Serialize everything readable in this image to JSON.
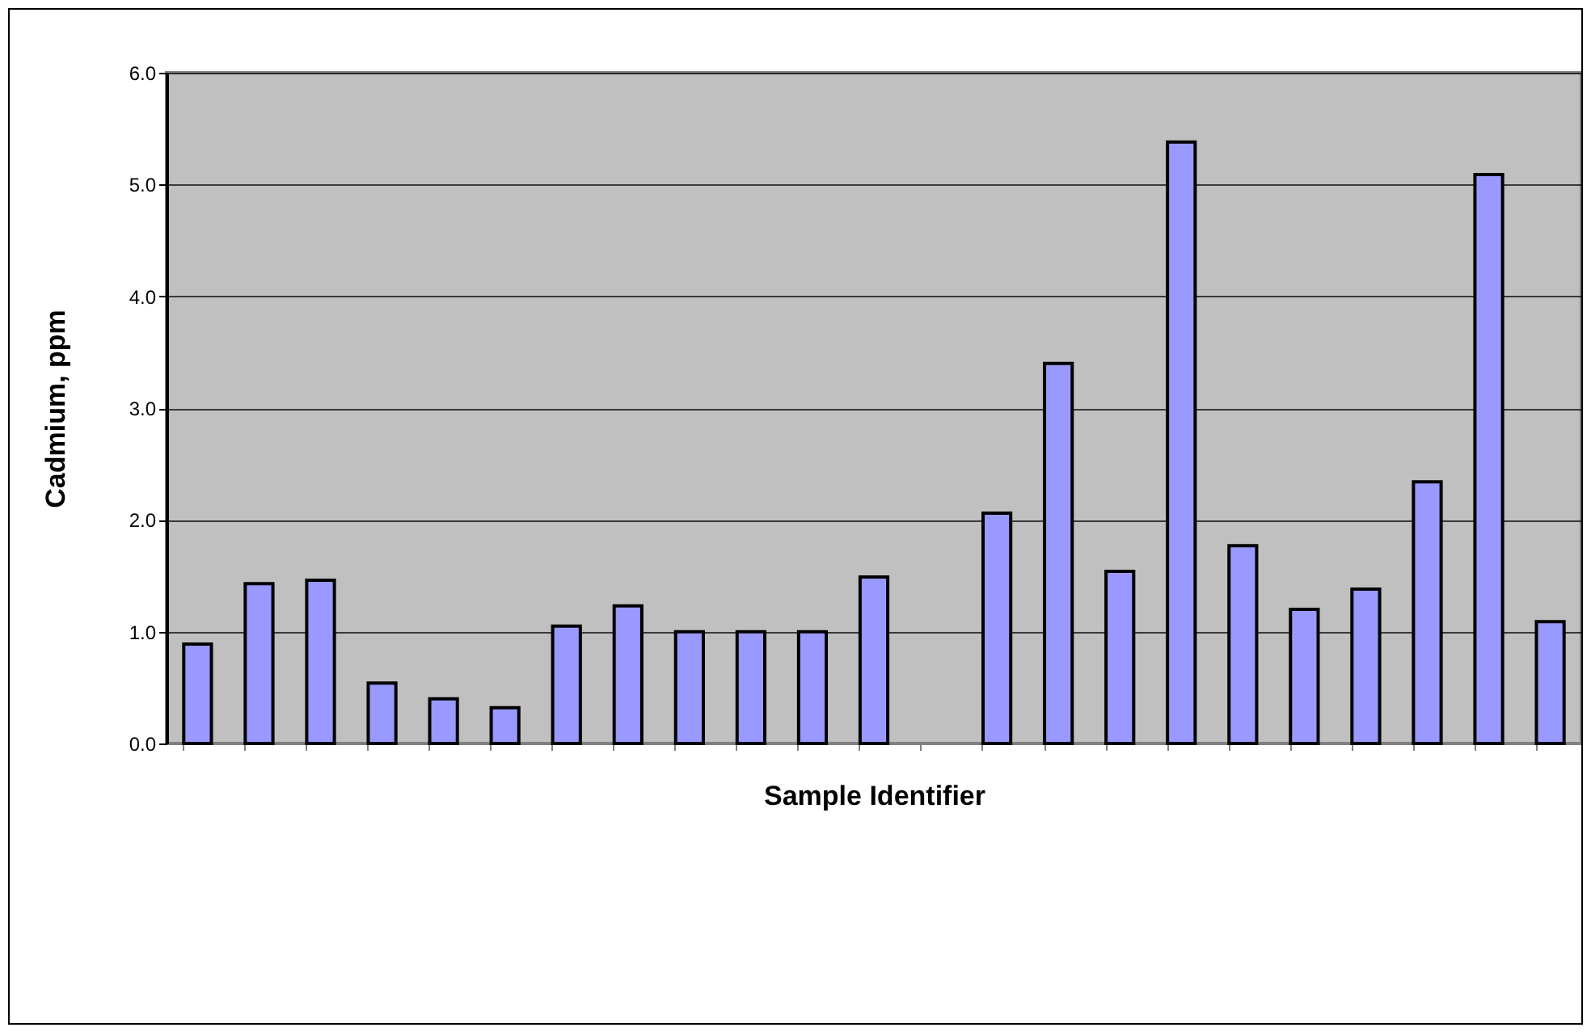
{
  "chart_data": {
    "type": "bar",
    "xlabel": "Sample Identifier",
    "ylabel": "Cadmium, ppm",
    "categories": [
      null,
      null,
      null,
      null,
      null,
      null,
      null,
      null,
      null,
      null,
      null,
      null,
      null,
      null,
      null,
      null,
      null,
      null,
      null,
      null,
      null,
      null,
      null
    ],
    "values": [
      0.89,
      1.43,
      1.46,
      0.54,
      0.4,
      0.32,
      1.05,
      1.23,
      1.0,
      1.0,
      1.0,
      1.49,
      null,
      2.06,
      3.4,
      1.54,
      5.38,
      1.77,
      1.2,
      1.38,
      2.34,
      5.09,
      1.09
    ],
    "color": "#9999ff",
    "ylim": [
      0,
      6
    ],
    "yticks": [
      {
        "value": 0,
        "label": "0.0"
      },
      {
        "value": 1,
        "label": "1.0"
      },
      {
        "value": 2,
        "label": "2.0"
      },
      {
        "value": 3,
        "label": "3.0"
      },
      {
        "value": 4,
        "label": "4.0"
      },
      {
        "value": 5,
        "label": "5.0"
      },
      {
        "value": 6,
        "label": "6.0"
      }
    ],
    "grid": "y",
    "tick_labels": "y"
  }
}
